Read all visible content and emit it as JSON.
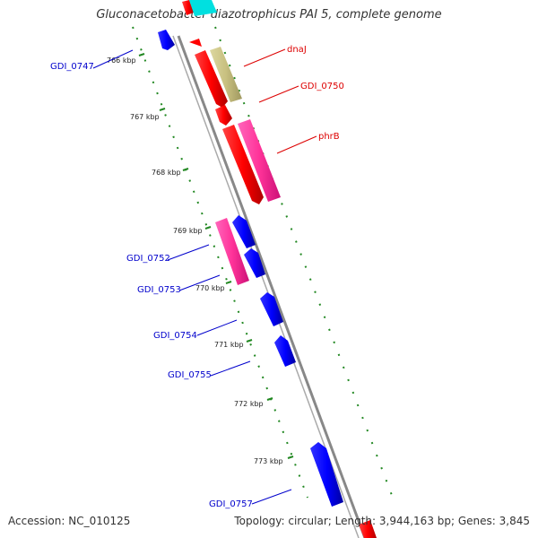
{
  "title": "Gluconacetobacter diazotrophicus PAI 5, complete genome",
  "accession": "Accession: NC_010125",
  "topology": "Topology: circular; Length: 3,944,163 bp; Genes: 3,845",
  "ticks": [
    {
      "label": "766 kbp"
    },
    {
      "label": "767 kbp"
    },
    {
      "label": "768 kbp"
    },
    {
      "label": "769 kbp"
    },
    {
      "label": "770 kbp"
    },
    {
      "label": "771 kbp"
    },
    {
      "label": "772 kbp"
    },
    {
      "label": "773 kbp"
    }
  ],
  "genes": [
    {
      "label": "GDI_0747",
      "color": "#0000cc"
    },
    {
      "label": "dnaJ",
      "color": "#dd0000"
    },
    {
      "label": "GDI_0750",
      "color": "#dd0000"
    },
    {
      "label": "phrB",
      "color": "#dd0000"
    },
    {
      "label": "GDI_0752",
      "color": "#0000cc"
    },
    {
      "label": "GDI_0753",
      "color": "#0000cc"
    },
    {
      "label": "GDI_0754",
      "color": "#0000cc"
    },
    {
      "label": "GDI_0755",
      "color": "#0000cc"
    },
    {
      "label": "GDI_0757",
      "color": "#0000cc"
    }
  ],
  "feature_colors": {
    "forward_cds": "#ff0000",
    "reverse_cds": "#0000ff",
    "olive": "#c8c080",
    "magenta": "#ff3399",
    "cyan": "#00e0e0",
    "backbone": "#888888",
    "ruler": "#228822"
  }
}
